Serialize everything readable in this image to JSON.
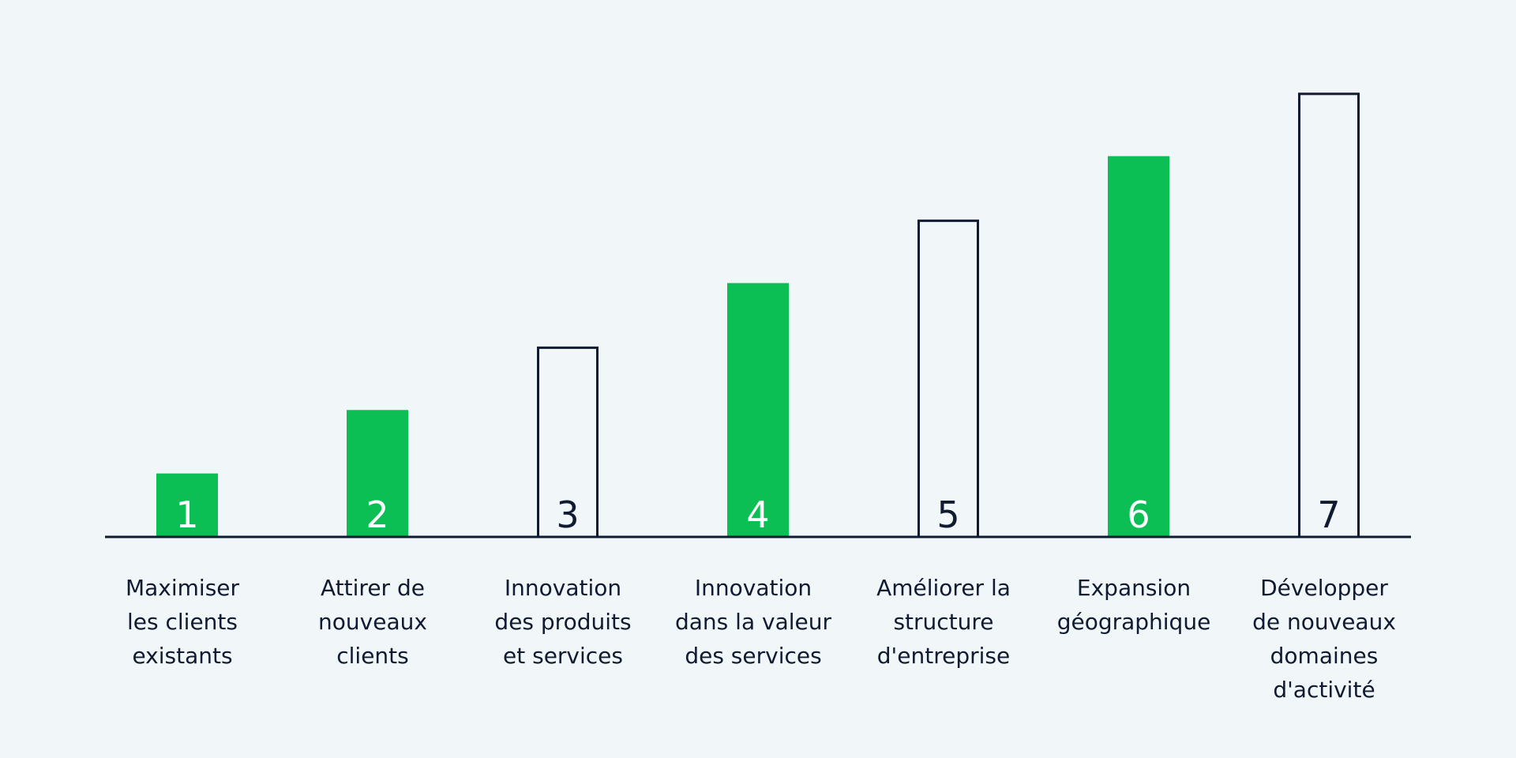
{
  "colors": {
    "background": "#f1f6f9",
    "accent_green": "#0bbf55",
    "outline": "#101a30",
    "number_on_green": "#ffffff",
    "number_on_outline": "#101a30"
  },
  "chart_data": {
    "type": "bar",
    "title": "",
    "xlabel": "",
    "ylabel": "",
    "ylim": [
      0,
      8
    ],
    "grid": false,
    "categories": [
      "Maximiser les clients existants",
      "Attirer de nouveaux clients",
      "Innovation des produits et services",
      "Innovation dans la valeur des services",
      "Améliorer la structure d'entreprise",
      "Expansion géographique",
      "Développer de nouveaux domaines d'activité"
    ],
    "category_lines": [
      [
        "Maximiser",
        "les clients",
        "existants"
      ],
      [
        "Attirer de",
        "nouveaux",
        "clients"
      ],
      [
        "Innovation",
        "des produits",
        "et services"
      ],
      [
        "Innovation",
        "dans la valeur",
        "des services"
      ],
      [
        "Améliorer la",
        "structure",
        "d'entreprise"
      ],
      [
        "Expansion",
        "géographique"
      ],
      [
        "Développer",
        "de nouveaux",
        "domaines",
        "d'activité"
      ]
    ],
    "values": [
      1,
      2,
      3,
      4,
      5,
      6,
      7
    ],
    "data_labels": [
      "1",
      "2",
      "3",
      "4",
      "5",
      "6",
      "7"
    ],
    "bar_styles": [
      "filled",
      "filled",
      "outline",
      "filled",
      "outline",
      "filled",
      "outline"
    ]
  }
}
